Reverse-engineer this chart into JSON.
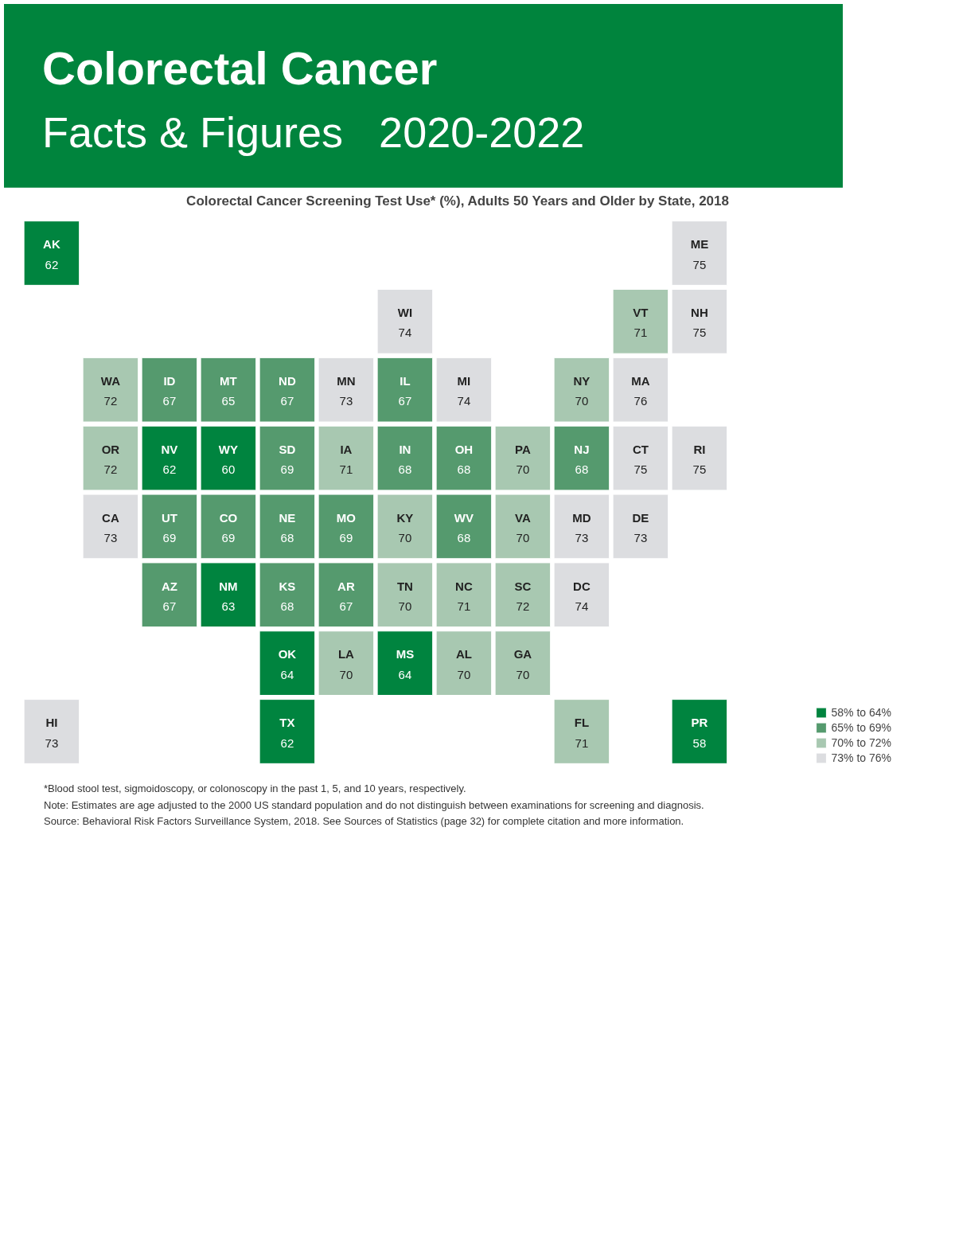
{
  "chart_data": {
    "type": "other",
    "title": "Colorectal Cancer Screening Test Use* (%), Adults 50 Years and Older by State, 2018",
    "categories": [
      "WA",
      "OR",
      "CA",
      "NV",
      "ID",
      "MT",
      "WY",
      "UT",
      "CO",
      "AZ",
      "NM",
      "ND",
      "SD",
      "NE",
      "KS",
      "OK",
      "TX",
      "MN",
      "IA",
      "MO",
      "AR",
      "LA",
      "WI",
      "IL",
      "MS",
      "MI",
      "IN",
      "KY",
      "TN",
      "AL",
      "OH",
      "WV",
      "GA",
      "FL",
      "SC",
      "NC",
      "VA",
      "PA",
      "NY",
      "VT",
      "NH",
      "ME",
      "MA",
      "RI",
      "CT",
      "NJ",
      "DE",
      "MD",
      "DC",
      "AK",
      "HI",
      "PR"
    ],
    "series": [
      {
        "name": "58% to 64%",
        "color": "#00843f",
        "values": [
          null,
          null,
          null,
          62,
          null,
          null,
          60,
          null,
          null,
          null,
          63,
          null,
          null,
          null,
          null,
          64,
          62,
          null,
          null,
          null,
          null,
          null,
          null,
          null,
          64,
          null,
          null,
          null,
          null,
          null,
          null,
          null,
          null,
          null,
          null,
          null,
          null,
          null,
          null,
          null,
          null,
          null,
          null,
          null,
          null,
          null,
          null,
          null,
          null,
          62,
          null,
          58
        ]
      },
      {
        "name": "65% to 69%",
        "color": "#559a6e",
        "values": [
          null,
          null,
          null,
          null,
          67,
          65,
          null,
          69,
          69,
          67,
          null,
          67,
          69,
          68,
          68,
          null,
          null,
          null,
          null,
          69,
          67,
          null,
          null,
          67,
          null,
          null,
          68,
          null,
          null,
          null,
          68,
          68,
          null,
          null,
          null,
          null,
          null,
          null,
          null,
          null,
          null,
          null,
          null,
          null,
          null,
          68,
          null,
          null,
          null,
          null,
          null,
          null
        ]
      },
      {
        "name": "70% to 72%",
        "color": "#a8c8b1",
        "values": [
          72,
          72,
          null,
          null,
          null,
          null,
          null,
          null,
          null,
          null,
          null,
          null,
          null,
          null,
          null,
          null,
          null,
          null,
          71,
          null,
          null,
          70,
          null,
          null,
          null,
          null,
          null,
          70,
          70,
          70,
          null,
          null,
          70,
          71,
          72,
          71,
          70,
          70,
          70,
          71,
          null,
          null,
          null,
          null,
          null,
          null,
          null,
          null,
          null,
          null,
          null,
          null
        ]
      },
      {
        "name": "73% to 76%",
        "color": "#dcdde0",
        "values": [
          null,
          null,
          73,
          null,
          null,
          null,
          null,
          null,
          null,
          null,
          null,
          null,
          null,
          null,
          null,
          null,
          null,
          73,
          null,
          null,
          null,
          null,
          74,
          null,
          null,
          74,
          null,
          null,
          null,
          null,
          null,
          null,
          null,
          null,
          null,
          null,
          null,
          null,
          null,
          null,
          75,
          75,
          76,
          75,
          75,
          null,
          73,
          73,
          74,
          null,
          73,
          null
        ]
      }
    ],
    "data_labels": true,
    "legend": "bottom right",
    "annotations": [
      "Colorectal Cancer",
      "Facts & Figures   2020-2022",
      "*Blood stool test, sigmoidoscopy, or colonoscopy in the past 1, 5, and 10 years, respectively.",
      "Note: Estimates are age adjusted to the 2000 US standard population and do not distinguish between examinations for screening and diagnosis.",
      "Source: Behavioral Risk Factors Surveillance System, 2018. See Sources of Statistics (page 32) for complete citation and more information."
    ]
  }
}
